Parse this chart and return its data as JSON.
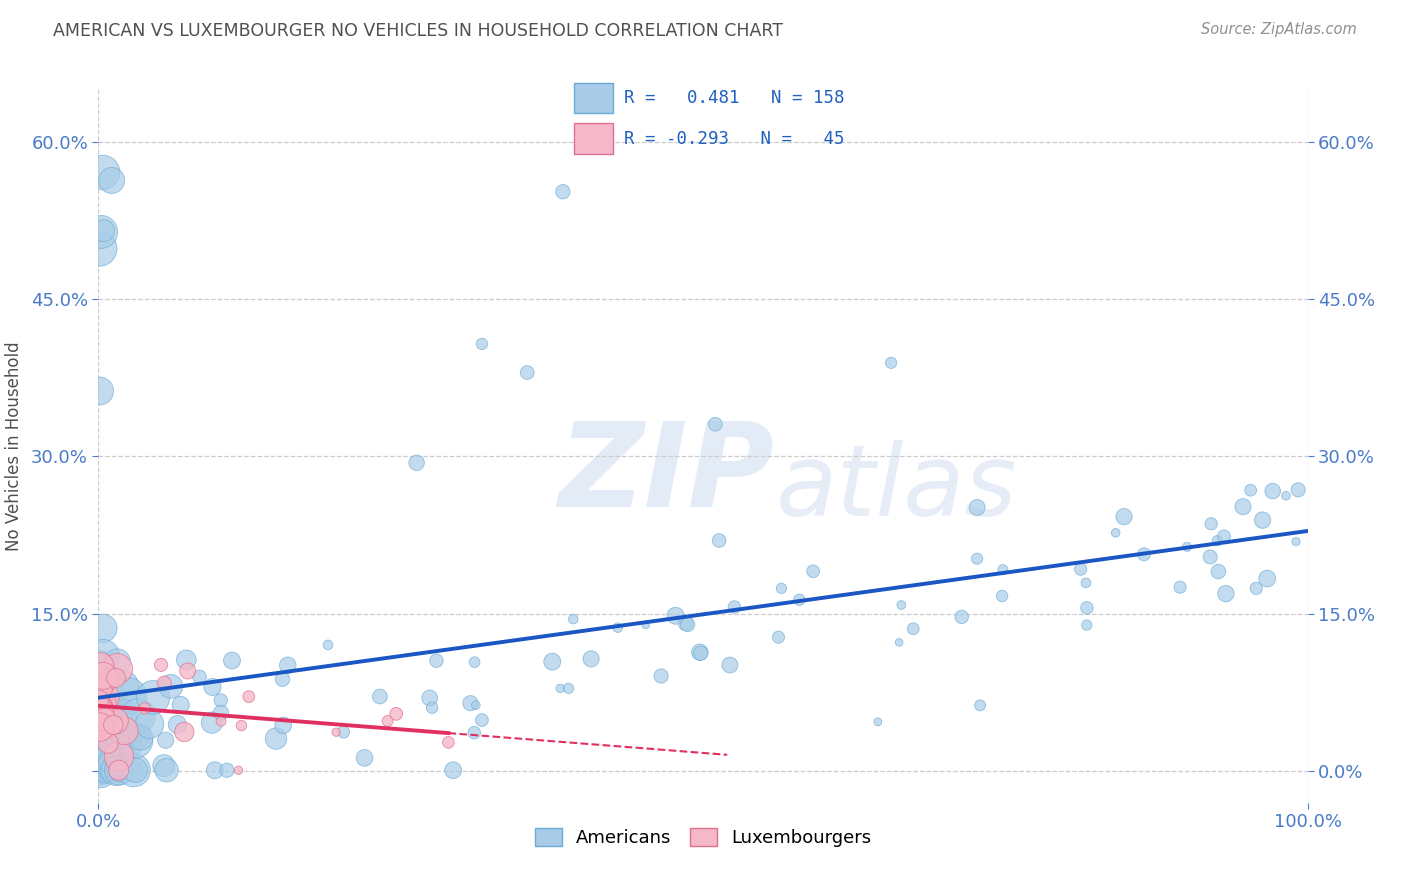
{
  "title": "AMERICAN VS LUXEMBOURGER NO VEHICLES IN HOUSEHOLD CORRELATION CHART",
  "source": "Source: ZipAtlas.com",
  "ylabel": "No Vehicles in Household",
  "xlim": [
    0.0,
    1.0
  ],
  "ylim": [
    -0.03,
    0.65
  ],
  "yticks": [
    0.0,
    0.15,
    0.3,
    0.45,
    0.6
  ],
  "ytick_labels": [
    "",
    "15.0%",
    "30.0%",
    "45.0%",
    "60.0%"
  ],
  "right_ytick_labels": [
    "0.0%",
    "15.0%",
    "30.0%",
    "45.0%",
    "60.0%"
  ],
  "xtick_labels": [
    "0.0%",
    "100.0%"
  ],
  "watermark_zip": "ZIP",
  "watermark_atlas": "atlas",
  "american_R": 0.481,
  "american_N": 158,
  "luxembourger_R": -0.293,
  "luxembourger_N": 45,
  "american_color": "#a8cce8",
  "american_edge": "#6aaad4",
  "luxembourger_color": "#f5b8c8",
  "luxembourger_edge": "#e07090",
  "regression_blue": "#1a56c4",
  "regression_pink": "#e03060",
  "background_color": "#ffffff",
  "grid_color": "#cccccc",
  "title_color": "#505050",
  "axis_color": "#4a7ac8",
  "legend_label_color": "#2060c0"
}
